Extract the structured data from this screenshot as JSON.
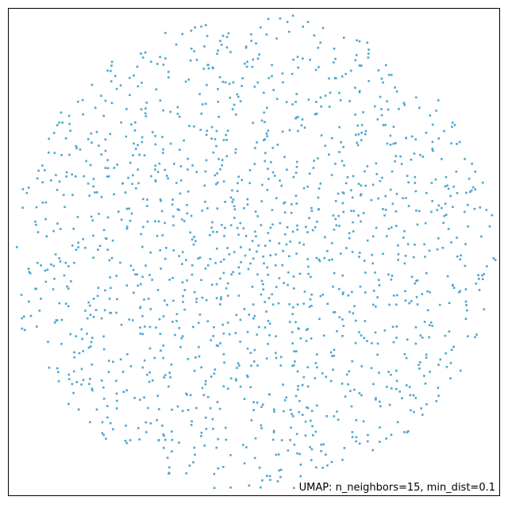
{
  "chart_data": {
    "type": "scatter",
    "title": "",
    "xlabel": "",
    "ylabel": "",
    "annotation": "UMAP: n_neighbors=15, min_dist=0.1",
    "axes_visible_ticks": false,
    "grid": false,
    "marker_color": "#4aa6d1",
    "marker_shape": "square",
    "xlim": [
      -1,
      1
    ],
    "ylim": [
      -1,
      1
    ],
    "point_count": 1500,
    "distribution": "uniform disk, denser toward center",
    "extent": {
      "x": [
        -0.98,
        0.98
      ],
      "y": [
        -0.97,
        0.97
      ]
    }
  }
}
